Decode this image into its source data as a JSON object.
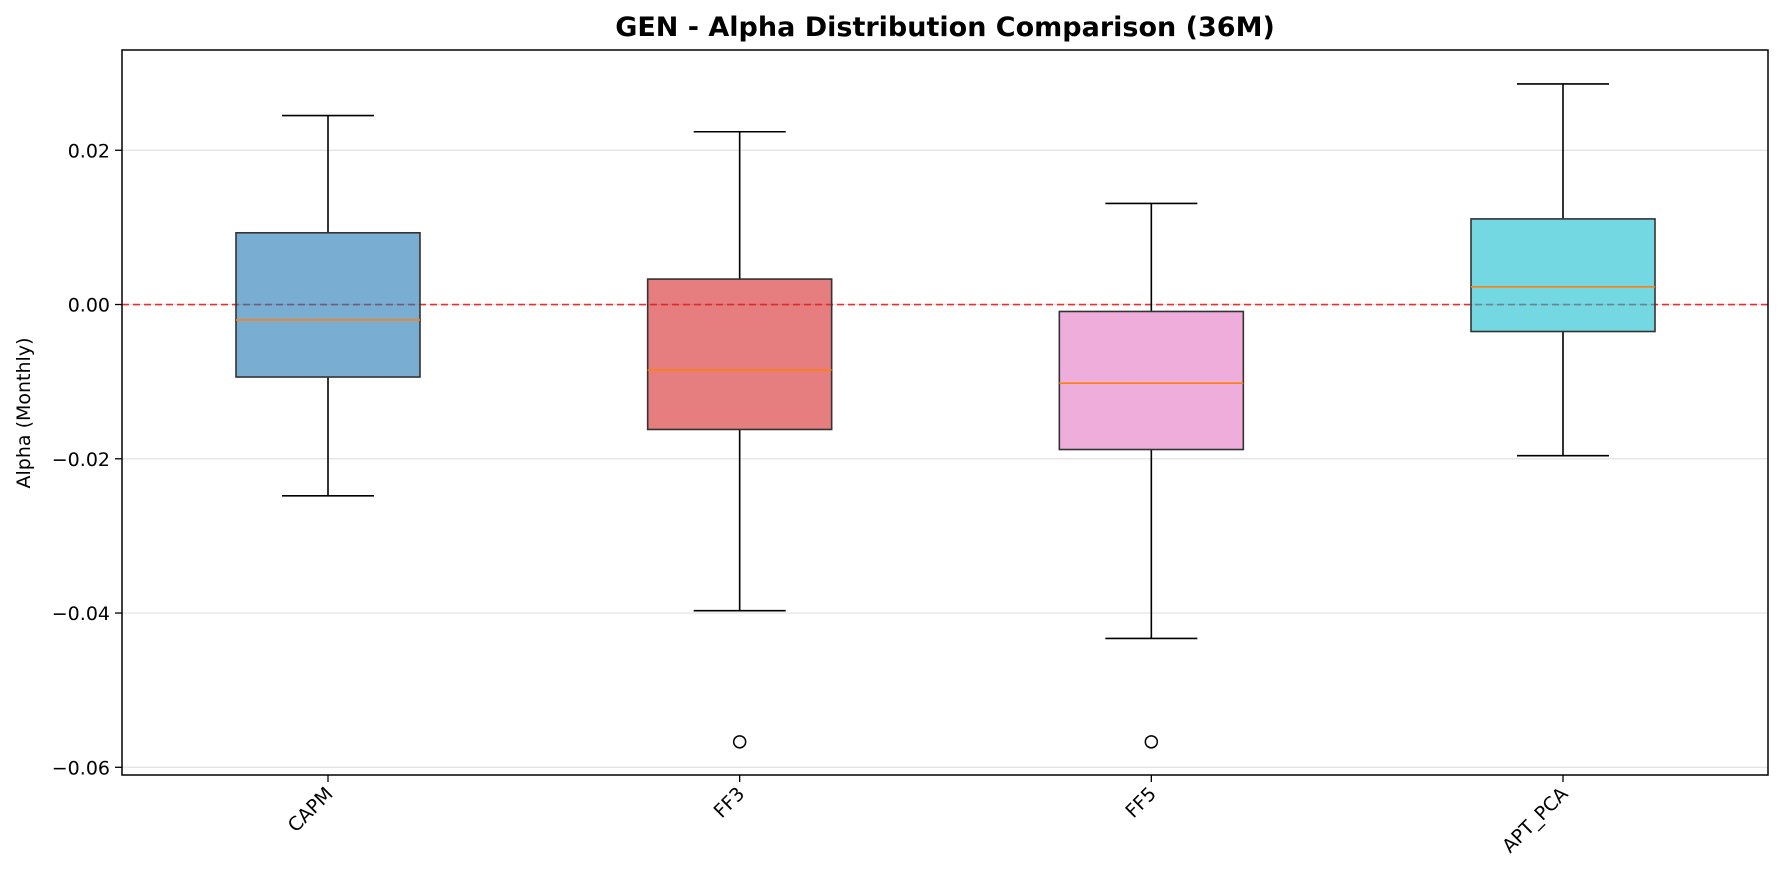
{
  "chart_data": {
    "type": "box",
    "title": "GEN - Alpha Distribution Comparison (36M)",
    "xlabel": "",
    "ylabel": "Alpha (Monthly)",
    "ylim": [
      -0.061,
      0.033
    ],
    "yticks": [
      0.02,
      0.0,
      -0.02,
      -0.04,
      -0.06
    ],
    "ytick_labels": [
      "0.02",
      "0.00",
      "−0.02",
      "−0.04",
      "−0.06"
    ],
    "categories": [
      "CAPM",
      "FF3",
      "FF5",
      "APT_PCA"
    ],
    "boxes": [
      {
        "label": "CAPM",
        "whisker_low": -0.0248,
        "q1": -0.0094,
        "median": -0.002,
        "q3": 0.0093,
        "whisker_high": 0.0245,
        "outliers": [],
        "color": "#1f77b4"
      },
      {
        "label": "FF3",
        "whisker_low": -0.0397,
        "q1": -0.0162,
        "median": -0.0085,
        "q3": 0.0033,
        "whisker_high": 0.0224,
        "outliers": [
          -0.0567
        ],
        "color": "#d62728"
      },
      {
        "label": "FF5",
        "whisker_low": -0.0433,
        "q1": -0.0188,
        "median": -0.0102,
        "q3": -0.0009,
        "whisker_high": 0.0131,
        "outliers": [
          -0.0567
        ],
        "color": "#e377c2"
      },
      {
        "label": "APT_PCA",
        "whisker_low": -0.0196,
        "q1": -0.0035,
        "median": 0.0023,
        "q3": 0.0111,
        "whisker_high": 0.0286,
        "outliers": [],
        "color": "#17becf"
      }
    ],
    "reference_line": {
      "y": 0.0,
      "color": "#e8312f",
      "style": "dashed"
    },
    "grid": "y",
    "box_alpha": 0.6,
    "median_color": "#ff7f0e"
  }
}
